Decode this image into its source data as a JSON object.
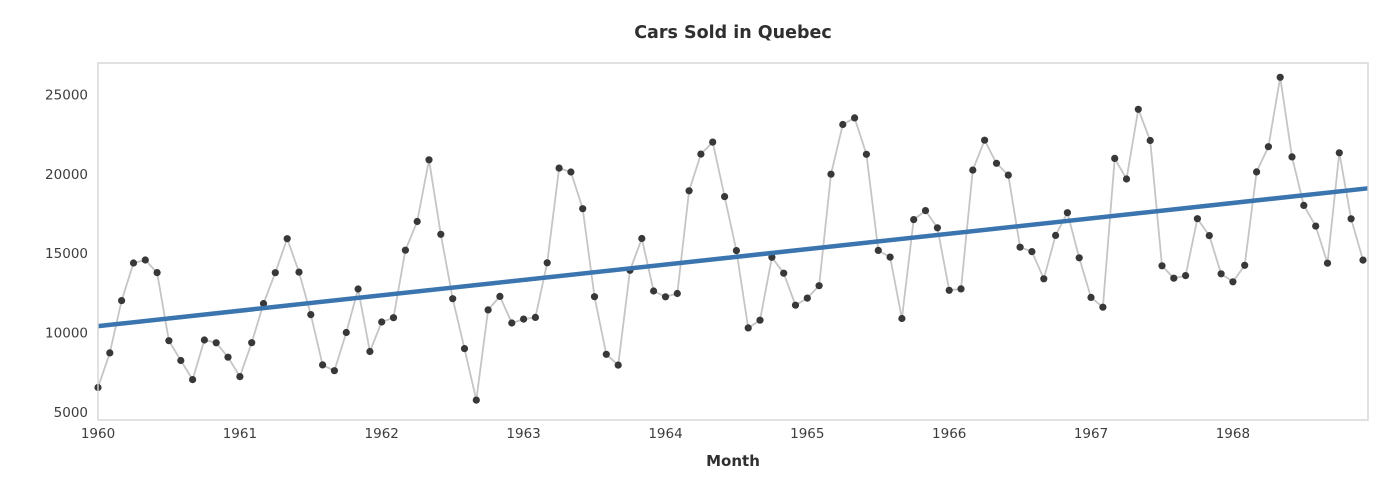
{
  "chart_data": {
    "type": "line",
    "title": "Cars Sold in Quebec",
    "xlabel": "Month",
    "ylabel": "",
    "x_range": [
      "1960-01",
      "1968-12"
    ],
    "xlim": [
      1960,
      1969
    ],
    "ylim": [
      4500,
      27000
    ],
    "x_ticks": [
      "1960",
      "1961",
      "1962",
      "1963",
      "1964",
      "1965",
      "1966",
      "1967",
      "1968"
    ],
    "y_ticks": [
      "5000",
      "10000",
      "15000",
      "20000",
      "25000"
    ],
    "grid": false,
    "legend": false,
    "series": [
      {
        "name": "Monthly car sales (observed)",
        "style": "light gray connecting line with dark round markers",
        "marker_color": "#383838",
        "line_color": "#c5c5c5",
        "monthly_values_by_year": [
          {
            "year": 1960,
            "values": [
              6550,
              8728,
              12026,
              14395,
              14587,
              13791,
              9498,
              8251,
              7049,
              9545,
              9364,
              8456
            ]
          },
          {
            "year": 1961,
            "values": [
              7237,
              9374,
              11837,
              13784,
              15926,
              13821,
              11143,
              7975,
              7610,
              10015,
              12759,
              8816
            ]
          },
          {
            "year": 1962,
            "values": [
              10677,
              10947,
              15200,
              17010,
              20900,
              16205,
              12143,
              8997,
              5754,
              11436,
              12292,
              10611
            ]
          },
          {
            "year": 1963,
            "values": [
              10862,
              10965,
              14405,
              20379,
              20128,
              17816,
              12268,
              8642,
              7962,
              13932,
              15936,
              12628
            ]
          },
          {
            "year": 1964,
            "values": [
              12267,
              12470,
              18944,
              21259,
              22015,
              18581,
              15175,
              10306,
              10792,
              14752,
              13754,
              11738
            ]
          },
          {
            "year": 1965,
            "values": [
              12181,
              12965,
              19990,
              23125,
              23541,
              21247,
              15189,
              14767,
              10895,
              17130,
              17697,
              16611
            ]
          },
          {
            "year": 1966,
            "values": [
              12674,
              12760,
              20249,
              22135,
              20677,
              19933,
              15388,
              15113,
              13401,
              16135,
              17562,
              14720
            ]
          },
          {
            "year": 1967,
            "values": [
              12225,
              11608,
              20985,
              19692,
              24081,
              22114,
              14220,
              13434,
              13598,
              17187,
              16119,
              13713
            ]
          },
          {
            "year": 1968,
            "values": [
              13210,
              14251,
              20139,
              21725,
              26099,
              21084,
              18024,
              16722,
              14385,
              21342,
              17180,
              14577
            ]
          }
        ]
      },
      {
        "name": "Linear trend",
        "style": "thick solid straight line",
        "color": "#3b75af",
        "points": [
          {
            "x": 1960.0,
            "value": 10420
          },
          {
            "x": 1969.0,
            "value": 19100
          }
        ]
      }
    ]
  }
}
